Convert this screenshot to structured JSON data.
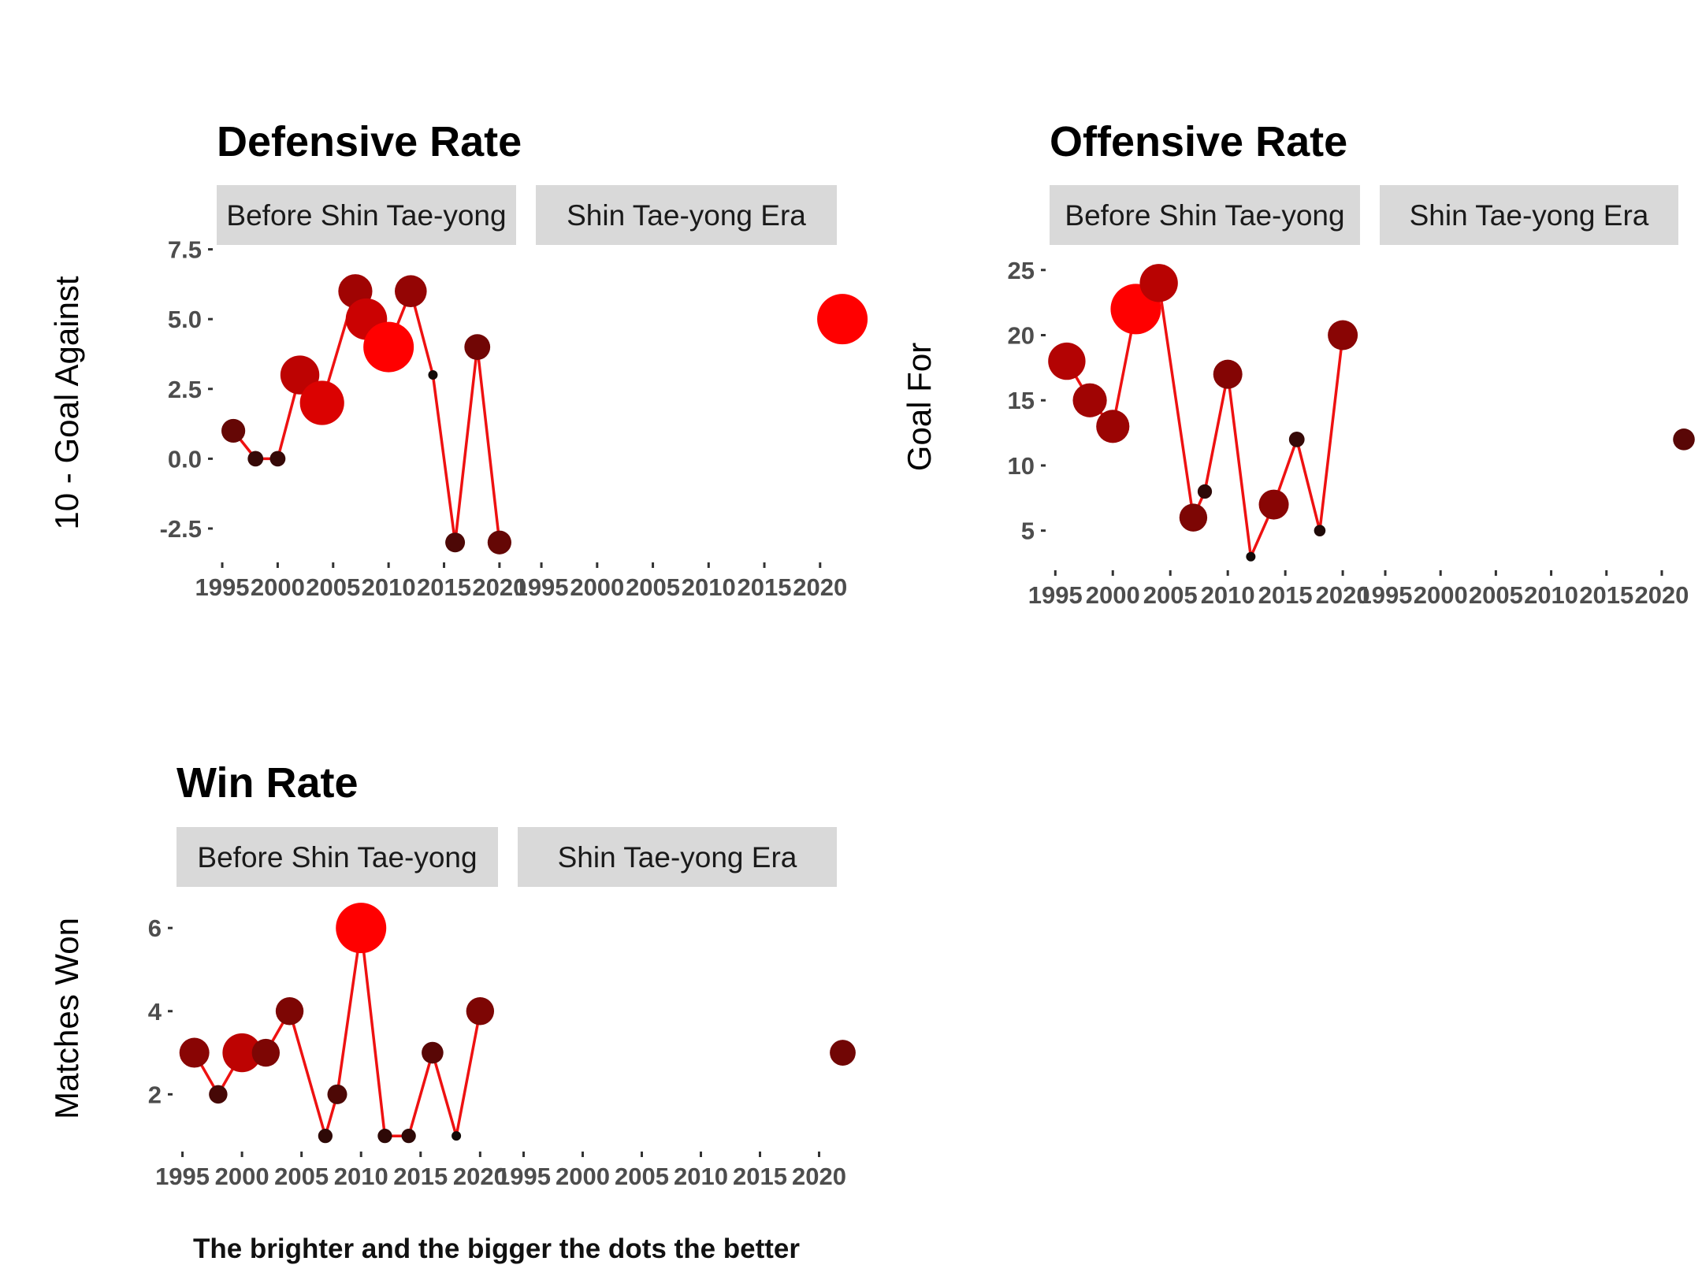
{
  "caption": "The brighter and the bigger the dots the better",
  "facet_labels": [
    "Before Shin Tae-yong",
    "Shin Tae-yong Era"
  ],
  "x_tick_labels": [
    "1995",
    "2000",
    "2005",
    "2010",
    "2015",
    "2020"
  ],
  "chart_data": [
    {
      "id": "defensive",
      "type": "line",
      "title": "Defensive Rate",
      "ylabel": "10 - Goal Against",
      "xlabel": "",
      "xlim": [
        1994.5,
        2021.5
      ],
      "ylim": [
        -3.6,
        7.6
      ],
      "yticks": [
        -2.5,
        0,
        2.5,
        5,
        7.5
      ],
      "ytick_labels": [
        "-2.5",
        "0.0",
        "2.5",
        "5.0",
        "7.5"
      ],
      "grid": false,
      "line_color": "#ee1111",
      "before": {
        "x": [
          1996,
          1998,
          2000,
          2002,
          2004,
          2007,
          2008,
          2010,
          2012,
          2014,
          2016,
          2018,
          2020
        ],
        "y": [
          1,
          0,
          0,
          3,
          2,
          6,
          5,
          4,
          6,
          3,
          -3,
          4,
          -3
        ],
        "rank": [
          0.35,
          0.15,
          0.15,
          0.72,
          0.85,
          0.6,
          0.78,
          1.0,
          0.55,
          0.0,
          0.25,
          0.4,
          0.35
        ]
      },
      "era": {
        "x": [
          2022
        ],
        "y": [
          5
        ],
        "rank": [
          1.0
        ]
      }
    },
    {
      "id": "offensive",
      "type": "line",
      "title": "Offensive Rate",
      "ylabel": "Goal For",
      "xlabel": "",
      "xlim": [
        1994.5,
        2021.5
      ],
      "ylim": [
        2.2,
        26.8
      ],
      "yticks": [
        5,
        10,
        15,
        20,
        25
      ],
      "ytick_labels": [
        "5",
        "10",
        "15",
        "20",
        "25"
      ],
      "grid": false,
      "line_color": "#ee1111",
      "before": {
        "x": [
          1996,
          1998,
          2000,
          2002,
          2004,
          2007,
          2008,
          2010,
          2012,
          2014,
          2016,
          2018,
          2020
        ],
        "y": [
          18,
          15,
          13,
          22,
          24,
          6,
          8,
          17,
          3,
          7,
          12,
          5,
          20
        ],
        "rank": [
          0.68,
          0.6,
          0.58,
          1.0,
          0.7,
          0.45,
          0.12,
          0.48,
          0.0,
          0.5,
          0.15,
          0.05,
          0.5
        ]
      },
      "era": {
        "x": [
          2022
        ],
        "y": [
          12
        ],
        "rank": [
          0.3
        ]
      }
    },
    {
      "id": "win",
      "type": "line",
      "title": "Win Rate",
      "ylabel": "Matches Won",
      "xlabel": "",
      "xlim": [
        1994.5,
        2021.5
      ],
      "ylim": [
        0.7,
        6.95
      ],
      "yticks": [
        2,
        4,
        6
      ],
      "ytick_labels": [
        "2",
        "4",
        "6"
      ],
      "grid": false,
      "line_color": "#ee1111",
      "before": {
        "x": [
          1996,
          1998,
          2000,
          2002,
          2004,
          2007,
          2008,
          2010,
          2012,
          2014,
          2016,
          2018,
          2020
        ],
        "y": [
          3,
          2,
          3,
          3,
          4,
          1,
          2,
          6,
          1,
          1,
          3,
          1,
          4
        ],
        "rank": [
          0.5,
          0.22,
          0.72,
          0.45,
          0.45,
          0.12,
          0.25,
          1.0,
          0.12,
          0.12,
          0.3,
          0.0,
          0.45
        ]
      },
      "era": {
        "x": [
          2022
        ],
        "y": [
          3
        ],
        "rank": [
          0.4
        ]
      }
    }
  ]
}
